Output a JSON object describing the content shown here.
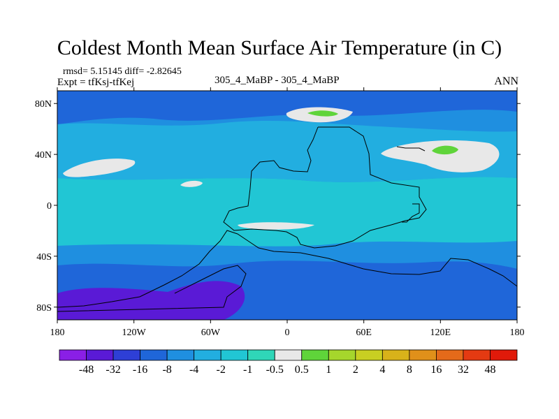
{
  "chart_data": {
    "type": "heatmap",
    "title": "Coldest Month Mean Surface Air Temperature (in C)",
    "stats": "rmsd= 5.15145  diff= -2.82645",
    "expt": "Expt = tfKsj-tfKej",
    "subtitle": "305_4_MaBP - 305_4_MaBP",
    "season": "ANN",
    "xlabel": "",
    "ylabel": "",
    "xlim": [
      -180,
      180
    ],
    "ylim": [
      -90,
      90
    ],
    "x_ticks": [
      {
        "value": -180,
        "label": "180"
      },
      {
        "value": -120,
        "label": "120W"
      },
      {
        "value": -60,
        "label": "60W"
      },
      {
        "value": 0,
        "label": "0"
      },
      {
        "value": 60,
        "label": "60E"
      },
      {
        "value": 120,
        "label": "120E"
      },
      {
        "value": 180,
        "label": "180"
      }
    ],
    "y_ticks": [
      {
        "value": 80,
        "label": "80N"
      },
      {
        "value": 40,
        "label": "40N"
      },
      {
        "value": 0,
        "label": "0"
      },
      {
        "value": -40,
        "label": "40S"
      },
      {
        "value": -80,
        "label": "80S"
      }
    ],
    "colorbar": {
      "levels": [
        "-48",
        "-32",
        "-16",
        "-8",
        "-4",
        "-2",
        "-1",
        "-0.5",
        "0.5",
        "1",
        "2",
        "4",
        "8",
        "16",
        "32",
        "48"
      ],
      "colors": [
        "#8a1fe6",
        "#5a1ad6",
        "#2e3fd6",
        "#1f66d9",
        "#1f8fe0",
        "#22aee0",
        "#21c6d4",
        "#2fd6b8",
        "#e8e8e8",
        "#5fd43a",
        "#a6d62c",
        "#c8cf22",
        "#d8b21a",
        "#e0901a",
        "#e46a1a",
        "#e43a12",
        "#e01a0a"
      ]
    },
    "regions": [
      {
        "label": "background",
        "color": "#1f8fe0"
      },
      {
        "label": "northern polar band",
        "color": "#1f66d9"
      },
      {
        "label": "northern mid band",
        "color": "#22aee0"
      },
      {
        "label": "tropics",
        "color": "#21c6d4"
      },
      {
        "label": "southern ocean band",
        "color": "#1f66d9"
      },
      {
        "label": "antarctic",
        "color": "#5a1ad6"
      },
      {
        "label": "near zero patches",
        "color": "#e8e8e8"
      },
      {
        "label": "warm patches",
        "color": "#5fd43a"
      }
    ]
  }
}
